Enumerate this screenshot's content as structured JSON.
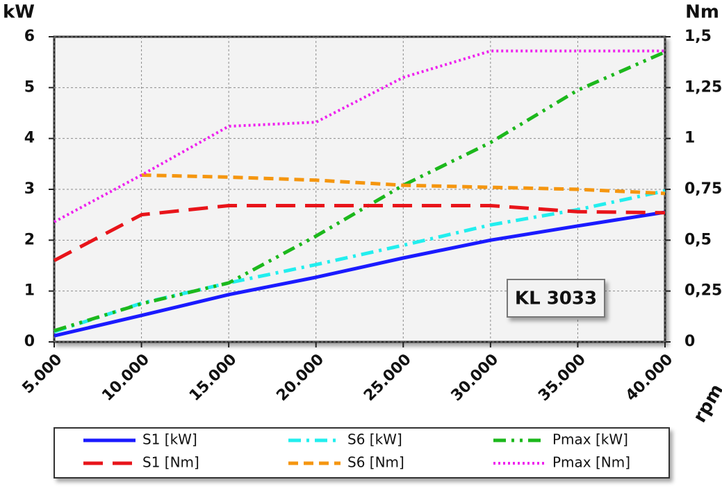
{
  "chart_data": {
    "type": "line",
    "ylabel": "kW",
    "y2label": "Nm",
    "xlabel": "rpm",
    "annotation": "KL 3033",
    "x": [
      5000,
      10000,
      15000,
      20000,
      25000,
      30000,
      35000,
      40000
    ],
    "xlim": [
      5000,
      40000
    ],
    "xticks": [
      {
        "value": 5000,
        "label": "5.000"
      },
      {
        "value": 10000,
        "label": "10.000"
      },
      {
        "value": 15000,
        "label": "15.000"
      },
      {
        "value": 20000,
        "label": "20.000"
      },
      {
        "value": 25000,
        "label": "25.000"
      },
      {
        "value": 30000,
        "label": "30.000"
      },
      {
        "value": 35000,
        "label": "35.000"
      },
      {
        "value": 40000,
        "label": "40.000"
      }
    ],
    "ylim": [
      0,
      6
    ],
    "yticks": [
      0,
      1,
      2,
      3,
      4,
      5,
      6
    ],
    "y2lim": [
      0,
      1.5
    ],
    "y2ticks": [
      0,
      {
        "value": 0.25,
        "label": "0,25"
      },
      {
        "value": 0.5,
        "label": "0,5"
      },
      {
        "value": 0.75,
        "label": "0,75"
      },
      1,
      {
        "value": 1.25,
        "label": "1,25"
      },
      {
        "value": 1.5,
        "label": "1,5"
      }
    ],
    "grid": true,
    "series": [
      {
        "name": "S1 [kW]",
        "color": "#1a1aff",
        "dash": "solid",
        "values": [
          0.12,
          0.52,
          0.93,
          1.27,
          1.65,
          2.0,
          2.28,
          2.55
        ]
      },
      {
        "name": "S6 [kW]",
        "color": "#22eeee",
        "dash": "dashdot",
        "values": [
          0.2,
          0.76,
          1.16,
          1.52,
          1.9,
          2.3,
          2.6,
          2.97
        ]
      },
      {
        "name": "Pmax [kW]",
        "color": "#1cb81c",
        "dash": "dashdotdot",
        "values": [
          0.22,
          0.75,
          1.16,
          2.08,
          3.08,
          3.92,
          4.95,
          5.7
        ]
      },
      {
        "name": "S1 [Nm]",
        "color": "#e8141a",
        "dash": "longdash",
        "axis": "y2",
        "values": [
          0.4,
          0.625,
          0.67,
          0.67,
          0.67,
          0.67,
          0.64,
          0.635
        ]
      },
      {
        "name": "S6 [Nm]",
        "color": "#f5960f",
        "dash": "dash",
        "axis": "y2",
        "values": [
          null,
          0.82,
          0.81,
          0.795,
          0.77,
          0.76,
          0.75,
          0.73
        ]
      },
      {
        "name": "Pmax [Nm]",
        "color": "#ee22ee",
        "dash": "dot",
        "axis": "y2",
        "values": [
          0.59,
          0.82,
          1.06,
          1.08,
          1.3,
          1.43,
          1.43,
          1.43
        ]
      }
    ]
  }
}
